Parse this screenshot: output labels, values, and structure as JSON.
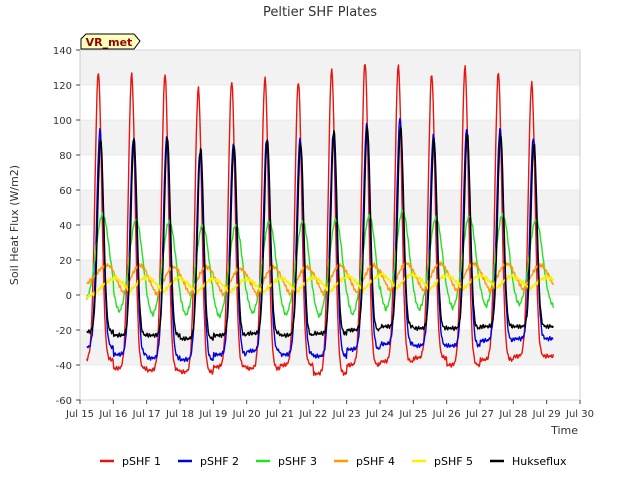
{
  "chart_data": {
    "type": "line",
    "title": "Peltier SHF Plates",
    "xlabel": "Time",
    "ylabel": "Soil Heat Flux (W/m2)",
    "badge": "VR_met",
    "xlim": [
      15,
      30
    ],
    "ylim": [
      -60,
      140
    ],
    "x_ticks": [
      15,
      16,
      17,
      18,
      19,
      20,
      21,
      22,
      23,
      24,
      25,
      26,
      27,
      28,
      29,
      30
    ],
    "x_tick_labels": [
      "Jul 15",
      "Jul 16",
      "Jul 17",
      "Jul 18",
      "Jul 19",
      "Jul 20",
      "Jul 21",
      "Jul 22",
      "Jul 23",
      "Jul 24",
      "Jul 25",
      "Jul 26",
      "Jul 27",
      "Jul 28",
      "Jul 29",
      "Jul 30"
    ],
    "y_ticks": [
      -60,
      -40,
      -20,
      0,
      20,
      40,
      60,
      80,
      100,
      120,
      140
    ],
    "days": [
      15,
      16,
      17,
      18,
      19,
      20,
      21,
      22,
      23,
      24,
      25,
      26,
      27,
      28
    ],
    "series": [
      {
        "name": "pSHF 1",
        "color": "#e8150f",
        "peak_time": 0.55,
        "width": 0.1,
        "peaks": [
          127,
          126,
          126,
          118,
          122,
          124,
          122,
          129,
          133,
          131,
          126,
          130,
          127,
          121
        ],
        "troughs": [
          -37,
          -42,
          -43,
          -44,
          -41,
          -42,
          -40,
          -45,
          -40,
          -38,
          -36,
          -40,
          -37,
          -35
        ]
      },
      {
        "name": "pSHF 2",
        "color": "#0000e0",
        "peak_time": 0.6,
        "width": 0.1,
        "peaks": [
          94,
          89,
          90,
          82,
          86,
          89,
          89,
          92,
          97,
          101,
          91,
          95,
          95,
          90
        ],
        "troughs": [
          -30,
          -34,
          -36,
          -37,
          -34,
          -32,
          -34,
          -35,
          -31,
          -28,
          -29,
          -29,
          -26,
          -25
        ]
      },
      {
        "name": "pSHF 3",
        "color": "#22e022",
        "peak_time": 0.68,
        "width": 0.2,
        "peaks": [
          46,
          43,
          42,
          40,
          40,
          42,
          42,
          43,
          45,
          48,
          44,
          45,
          46,
          43
        ],
        "troughs": [
          -5,
          -12,
          -14,
          -14,
          -15,
          -13,
          -14,
          -15,
          -14,
          -11,
          -11,
          -10,
          -9,
          -8
        ]
      },
      {
        "name": "pSHF 4",
        "color": "#ff9900",
        "peak_time": 0.8,
        "width": 0.3,
        "peaks": [
          17,
          17,
          16,
          16,
          15,
          16,
          16,
          17,
          17,
          18,
          18,
          18,
          18,
          17
        ],
        "troughs": [
          5,
          -4,
          -5,
          -5,
          -5,
          -5,
          -5,
          -5,
          -4,
          -3,
          -3,
          -3,
          -3,
          -2
        ]
      },
      {
        "name": "pSHF 5",
        "color": "#ffee00",
        "peak_time": 1.0,
        "width": 0.35,
        "peaks": [
          9,
          10,
          10,
          9,
          9,
          9,
          10,
          10,
          11,
          12,
          11,
          11,
          11,
          10
        ],
        "troughs": [
          -2,
          -2,
          -3,
          -3,
          -3,
          -3,
          -3,
          -3,
          -2,
          -1,
          -1,
          -1,
          0,
          0
        ]
      },
      {
        "name": "Hukseflux",
        "color": "#000000",
        "peak_time": 0.62,
        "width": 0.09,
        "peaks": [
          89,
          89,
          90,
          84,
          86,
          89,
          87,
          94,
          96,
          96,
          89,
          92,
          92,
          87
        ],
        "troughs": [
          -21,
          -23,
          -23,
          -25,
          -23,
          -22,
          -23,
          -22,
          -20,
          -18,
          -19,
          -19,
          -18,
          -18
        ]
      }
    ]
  }
}
